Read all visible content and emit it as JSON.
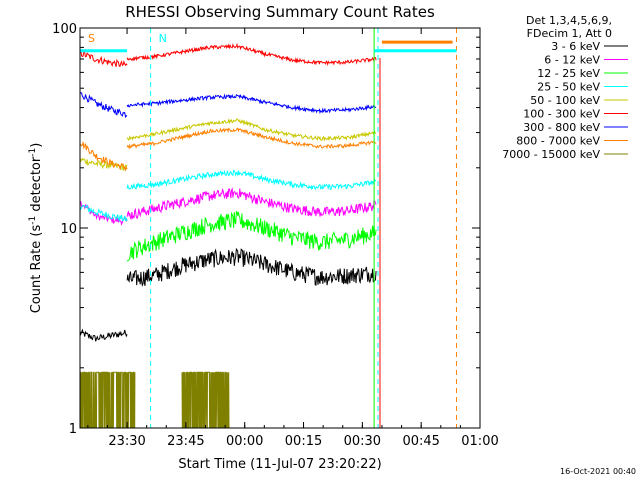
{
  "chart_data": {
    "type": "line",
    "title": "RHESSI Observing Summary Count Rates",
    "xlabel": "Start Time (11-Jul-07 23:20:22)",
    "ylabel_main": "Count Rate (s",
    "ylabel_sup": "-1",
    "ylabel_mid": " detector",
    "ylabel_end": ")",
    "yscale": "log",
    "ylim": [
      1,
      100
    ],
    "xlim_minutes": [
      -2,
      100
    ],
    "x_ticks": [
      {
        "label": "23:30",
        "m": 10
      },
      {
        "label": "23:45",
        "m": 25
      },
      {
        "label": "00:00",
        "m": 40
      },
      {
        "label": "00:15",
        "m": 55
      },
      {
        "label": "00:30",
        "m": 70
      },
      {
        "label": "00:45",
        "m": 85
      },
      {
        "label": "01:00",
        "m": 100
      }
    ],
    "y_ticks": [
      {
        "label": "1",
        "v": 1
      },
      {
        "label": "10",
        "v": 10
      },
      {
        "label": "100",
        "v": 100
      }
    ],
    "legend_header": [
      "Det 1,3,4,5,6,9,",
      "FDecim 1, Att 0"
    ],
    "attenuator_markers": [
      {
        "label": "S",
        "m": -2,
        "color": "#ff8000"
      },
      {
        "label": "N",
        "m": 16,
        "color": "#00ffff"
      }
    ],
    "dashed_lines_minutes": [
      16,
      74,
      94
    ],
    "solid_line_minutes": 73,
    "saa_segments": [
      {
        "m0": -2,
        "m1": 10,
        "v": 77,
        "color": "#00ffff"
      },
      {
        "m0": 73,
        "m1": 94,
        "v": 77,
        "color": "#00ffff"
      },
      {
        "m0": 75,
        "m1": 93,
        "v": 85,
        "color": "#ff8000"
      }
    ],
    "data_gap_minutes": [
      10,
      73.5
    ],
    "series": [
      {
        "name": "3 - 6 keV",
        "color": "#000000",
        "v": [
          5.5,
          5.8,
          6.5,
          7.0,
          7.2,
          6.6,
          6.0,
          5.7,
          5.8,
          6.0
        ],
        "noise": 0.1
      },
      {
        "name": "6 - 12 keV",
        "color": "#ff00ff",
        "v": [
          11.5,
          12.5,
          13.5,
          14.5,
          15.0,
          13.5,
          12.5,
          12.0,
          12.2,
          13.0
        ],
        "noise": 0.06
      },
      {
        "name": "12 - 25 keV",
        "color": "#00ff00",
        "v": [
          7.5,
          8.5,
          9.5,
          10.5,
          11.0,
          10.0,
          9.0,
          8.5,
          8.8,
          9.5
        ],
        "noise": 0.1
      },
      {
        "name": "25 - 50 keV",
        "color": "#00ffff",
        "v": [
          16.0,
          16.5,
          17.5,
          18.5,
          19.0,
          17.5,
          16.5,
          16.0,
          16.2,
          17.0
        ],
        "noise": 0.03
      },
      {
        "name": "50 - 100 keV",
        "color": "#c8c800",
        "v": [
          28.0,
          29.5,
          31.5,
          33.5,
          34.5,
          31.0,
          29.0,
          28.0,
          28.3,
          30.0
        ],
        "noise": 0.02
      },
      {
        "name": "100 - 300 keV",
        "color": "#ff0000",
        "v": [
          70.0,
          72.0,
          76.0,
          80.0,
          81.0,
          74.0,
          69.0,
          67.0,
          67.5,
          70.0
        ],
        "noise": 0.02
      },
      {
        "name": "300 - 800 keV",
        "color": "#0000ff",
        "v": [
          41.0,
          42.0,
          43.5,
          45.0,
          45.5,
          42.5,
          40.0,
          38.5,
          39.0,
          40.5
        ],
        "noise": 0.02
      },
      {
        "name": "800 - 7000 keV",
        "color": "#ff8000",
        "v": [
          25.5,
          26.5,
          28.5,
          30.5,
          31.0,
          28.5,
          26.5,
          25.5,
          25.8,
          27.0
        ],
        "noise": 0.02
      },
      {
        "name": "7000 - 15000 keV",
        "color": "#808000",
        "v": [
          1,
          1,
          1,
          1,
          1,
          1,
          1,
          1,
          1,
          1
        ],
        "noise": 0
      }
    ],
    "pre_gap_series": [
      {
        "name": "3 - 6 keV",
        "color": "#000000",
        "v": [
          3.0,
          2.8,
          2.9,
          3.0
        ]
      },
      {
        "name": "6 - 12 keV",
        "color": "#ff00ff",
        "v": [
          13.5,
          11.5,
          11.0,
          10.8
        ]
      },
      {
        "name": "25 - 50 keV",
        "color": "#00ffff",
        "v": [
          13.0,
          12.0,
          11.5,
          11.0
        ]
      },
      {
        "name": "50 - 100 keV",
        "color": "#c8c800",
        "v": [
          22.0,
          21.0,
          20.5,
          20.0
        ]
      },
      {
        "name": "100 - 300 keV",
        "color": "#ff0000",
        "v": [
          75.0,
          70.0,
          67.0,
          65.0
        ]
      },
      {
        "name": "300 - 800 keV",
        "color": "#0000ff",
        "v": [
          47.0,
          42.0,
          39.0,
          37.0
        ]
      },
      {
        "name": "800 - 7000 keV",
        "color": "#ff8000",
        "v": [
          27.0,
          23.0,
          21.0,
          20.0
        ]
      }
    ],
    "footer_date": "16-Oct-2021 00:40"
  }
}
